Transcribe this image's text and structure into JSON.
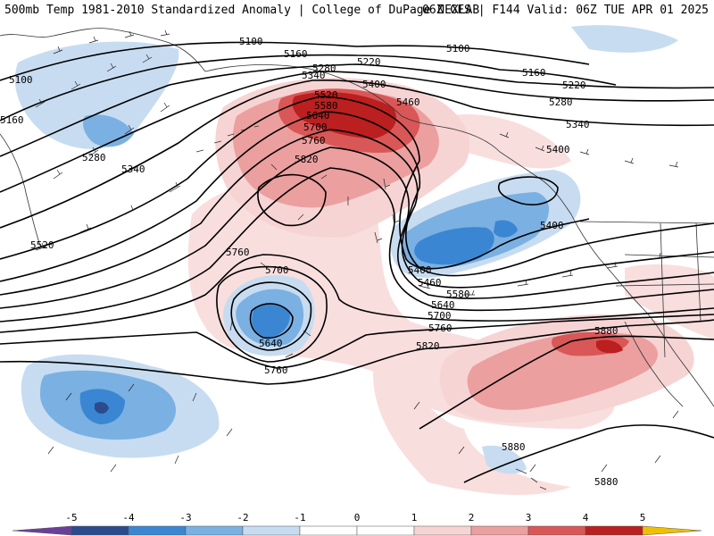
{
  "header": {
    "left_title": "500mb Temp 1981-2010 Standardized Anomaly | College of DuPage NEXLAB",
    "right_title": "06Z GFS | F144 Valid: 06Z TUE APR 01 2025"
  },
  "colors": {
    "anom_-5": "#6a3f9a",
    "anom_-4": "#2c4a8c",
    "anom_-3": "#3a86d2",
    "anom_-2": "#7bb0e2",
    "anom_-1": "#c7dcf1",
    "anom_0": "#ffffff",
    "anom_1": "#f7d4d4",
    "anom_2": "#ec9f9f",
    "anom_3": "#d95757",
    "anom_4": "#bb1f1f",
    "anom_5": "#7d1010",
    "anom_6": "#f0c000",
    "contour": "#000000",
    "coast": "#333333"
  },
  "colorbar": {
    "ticks": [
      "-5",
      "-4",
      "-3",
      "-2",
      "-1",
      "0",
      "1",
      "2",
      "3",
      "4",
      "5"
    ]
  },
  "contour_labels": [
    "5100",
    "5100",
    "5100",
    "5160",
    "5160",
    "5160",
    "5220",
    "5220",
    "5280",
    "5280",
    "5280",
    "5340",
    "5340",
    "5340",
    "5400",
    "5400",
    "5400",
    "5400",
    "5460",
    "5460",
    "5520",
    "5520",
    "5580",
    "5580",
    "5640",
    "5640",
    "5640",
    "5700",
    "5700",
    "5700",
    "5760",
    "5760",
    "5760",
    "5760",
    "5820",
    "5820",
    "5880",
    "5880",
    "5880"
  ]
}
